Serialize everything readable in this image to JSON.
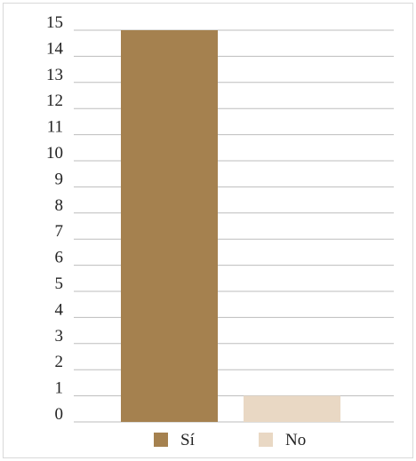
{
  "chart_data": {
    "type": "bar",
    "categories": [
      "Sí",
      "No"
    ],
    "values": [
      15,
      1
    ],
    "ylim": [
      0,
      15
    ],
    "yticks": [
      0,
      1,
      2,
      3,
      4,
      5,
      6,
      7,
      8,
      9,
      10,
      11,
      12,
      13,
      14,
      15
    ],
    "grid": true,
    "legend_position": "bottom",
    "colors": [
      "#a5814f",
      "#e9d8c4"
    ],
    "legend": [
      {
        "label": "Sí",
        "color": "#a5814f"
      },
      {
        "label": "No",
        "color": "#e9d8c4"
      }
    ]
  }
}
